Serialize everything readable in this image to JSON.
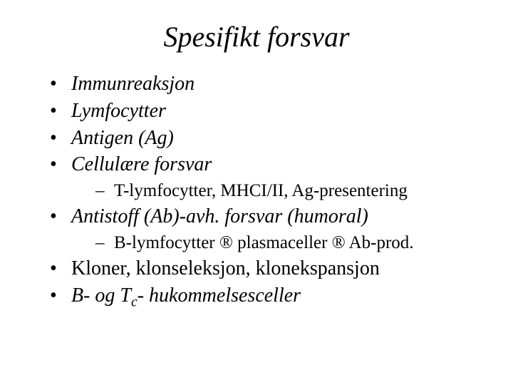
{
  "colors": {
    "background": "#ffffff",
    "text": "#000000"
  },
  "typography": {
    "family": "Times New Roman",
    "title_size_pt": 40,
    "title_style": "italic",
    "body_size_pt": 28,
    "sub_size_pt": 25
  },
  "title": "Spesifikt forsvar",
  "bullets": {
    "b1": "Immunreaksjon",
    "b2": "Lymfocytter",
    "b3": "Antigen (Ag)",
    "b4": "Cellulære forsvar",
    "b4_sub": "T-lymfocytter, MHCI/II, Ag-presentering",
    "b5": "Antistoff (Ab)-avh. forsvar (humoral)",
    "b5_sub_pre": "B-lymfocytter ",
    "b5_sub_mid": " plasmaceller ",
    "b5_sub_post": " Ab-prod.",
    "arrow": "®",
    "b6": "Kloner, klonseleksjon, klonekspansjon",
    "b7_pre": "B- og T",
    "b7_sub": "c",
    "b7_post": "- hukommelsesceller"
  }
}
